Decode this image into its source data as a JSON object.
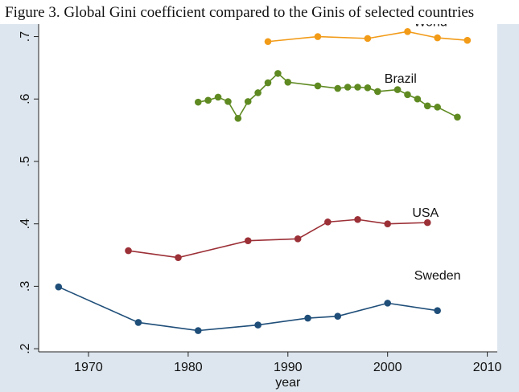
{
  "caption": "Figure 3. Global Gini coefficient compared to the Ginis of selected countries",
  "chart_data": {
    "type": "line",
    "title": "",
    "xlabel": "year",
    "ylabel": "",
    "xlim": [
      1965,
      2011
    ],
    "ylim": [
      0.195,
      0.72
    ],
    "xticks": [
      1970,
      1980,
      1990,
      2000,
      2010
    ],
    "xtick_labels": [
      "1970",
      "1980",
      "1990",
      "2000",
      "2010"
    ],
    "yticks": [
      0.2,
      0.3,
      0.4,
      0.5,
      0.6,
      0.7
    ],
    "ytick_labels": [
      ".2",
      ".3",
      ".4",
      ".5",
      ".6",
      ".7"
    ],
    "grid": false,
    "legend": "none",
    "series": [
      {
        "name": "World",
        "color": "#f29b18",
        "x": [
          1988,
          1993,
          1998,
          2002,
          2005,
          2008
        ],
        "y": [
          0.692,
          0.7,
          0.697,
          0.708,
          0.698,
          0.694
        ]
      },
      {
        "name": "Brazil",
        "color": "#5f8a22",
        "x": [
          1981,
          1982,
          1983,
          1984,
          1985,
          1986,
          1987,
          1988,
          1989,
          1990,
          1993,
          1995,
          1996,
          1997,
          1998,
          1999,
          2001,
          2002,
          2003,
          2004,
          2005,
          2007
        ],
        "y": [
          0.595,
          0.598,
          0.603,
          0.596,
          0.569,
          0.596,
          0.61,
          0.626,
          0.641,
          0.627,
          0.621,
          0.617,
          0.619,
          0.619,
          0.618,
          0.612,
          0.615,
          0.607,
          0.6,
          0.589,
          0.587,
          0.571
        ]
      },
      {
        "name": "USA",
        "color": "#9c3037",
        "x": [
          1974,
          1979,
          1986,
          1991,
          1994,
          1997,
          2000,
          2004
        ],
        "y": [
          0.357,
          0.346,
          0.373,
          0.376,
          0.403,
          0.407,
          0.4,
          0.402
        ]
      },
      {
        "name": "Sweden",
        "color": "#1f4e79",
        "x": [
          1967,
          1975,
          1981,
          1987,
          1992,
          1995,
          2000,
          2005
        ],
        "y": [
          0.299,
          0.242,
          0.229,
          0.238,
          0.249,
          0.252,
          0.273,
          0.261
        ]
      }
    ]
  }
}
